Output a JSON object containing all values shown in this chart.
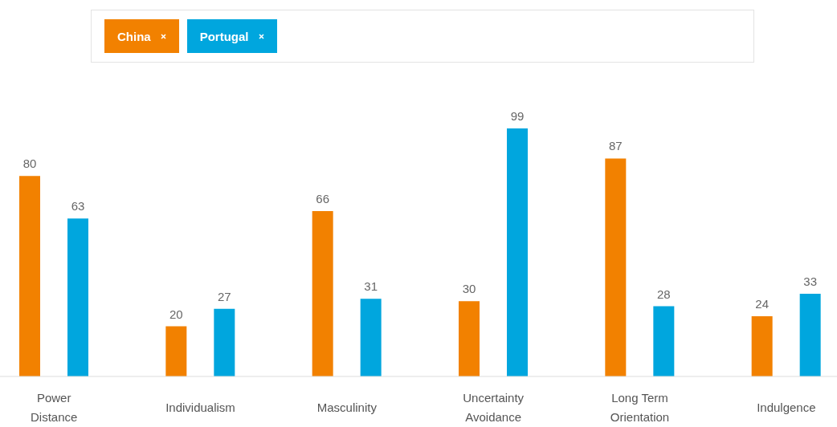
{
  "chart_data": {
    "type": "bar",
    "categories": [
      "Power Distance",
      "Individualism",
      "Masculinity",
      "Uncertainty Avoidance",
      "Long Term Orientation",
      "Indulgence"
    ],
    "series": [
      {
        "name": "China",
        "color": "#f28100",
        "values": [
          80,
          20,
          66,
          30,
          87,
          24
        ]
      },
      {
        "name": "Portugal",
        "color": "#00a6de",
        "values": [
          63,
          27,
          31,
          99,
          28,
          33
        ]
      }
    ],
    "tick_labels": "x",
    "data_labels": true,
    "legend": "top",
    "grid": false
  }
}
